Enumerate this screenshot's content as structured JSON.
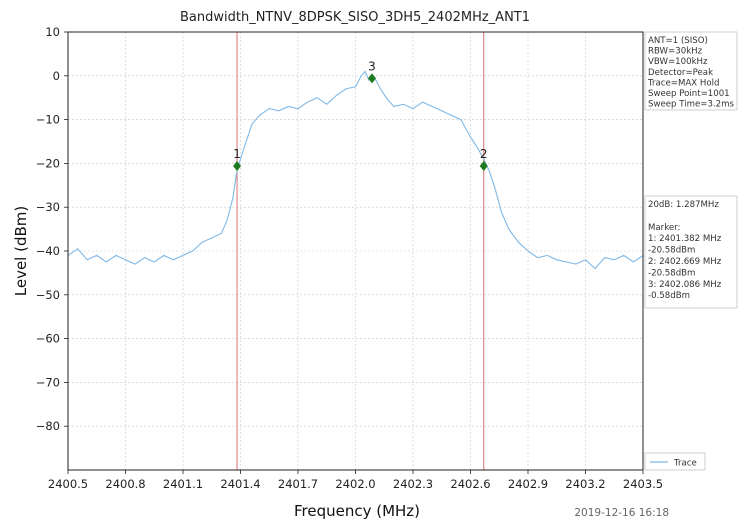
{
  "chart_data": {
    "type": "line",
    "title": "Bandwidth_NTNV_8DPSK_SISO_3DH5_2402MHz_ANT1",
    "xlabel": "Frequency (MHz)",
    "ylabel": "Level (dBm)",
    "xlim": [
      2400.5,
      2403.5
    ],
    "ylim": [
      -90,
      10
    ],
    "x_ticks": [
      2400.5,
      2400.8,
      2401.1,
      2401.4,
      2401.7,
      2402.0,
      2402.3,
      2402.6,
      2402.9,
      2403.2,
      2403.5
    ],
    "x_tick_labels": [
      "2400.5",
      "2400.8",
      "2401.1",
      "2401.4",
      "2401.7",
      "2402.0",
      "2402.3",
      "2402.6",
      "2402.9",
      "2403.2",
      "2403.5"
    ],
    "y_ticks": [
      10,
      0,
      -10,
      -20,
      -30,
      -40,
      -50,
      -60,
      -70,
      -80
    ],
    "y_tick_labels": [
      "10",
      "0",
      "−10",
      "−20",
      "−30",
      "−40",
      "−50",
      "−60",
      "−70",
      "−80"
    ],
    "grid": true,
    "legend_position": "bottom-right",
    "series": [
      {
        "name": "Trace",
        "color": "#7fb8e6",
        "x": [
          2400.5,
          2400.55,
          2400.6,
          2400.65,
          2400.7,
          2400.75,
          2400.8,
          2400.85,
          2400.9,
          2400.95,
          2401.0,
          2401.05,
          2401.1,
          2401.15,
          2401.2,
          2401.25,
          2401.3,
          2401.33,
          2401.36,
          2401.38,
          2401.4,
          2401.43,
          2401.46,
          2401.5,
          2401.55,
          2401.6,
          2401.65,
          2401.7,
          2401.75,
          2401.8,
          2401.85,
          2401.9,
          2401.95,
          2402.0,
          2402.03,
          2402.05,
          2402.07,
          2402.1,
          2402.13,
          2402.16,
          2402.2,
          2402.25,
          2402.3,
          2402.35,
          2402.4,
          2402.45,
          2402.5,
          2402.55,
          2402.6,
          2402.63,
          2402.67,
          2402.7,
          2402.73,
          2402.76,
          2402.8,
          2402.85,
          2402.9,
          2402.95,
          2403.0,
          2403.05,
          2403.1,
          2403.15,
          2403.2,
          2403.25,
          2403.3,
          2403.35,
          2403.4,
          2403.45,
          2403.5
        ],
        "y": [
          -41,
          -39.5,
          -42,
          -41,
          -42.5,
          -41,
          -42,
          -43,
          -41.5,
          -42.5,
          -41,
          -42,
          -41,
          -40,
          -38,
          -37,
          -36,
          -33,
          -28,
          -22,
          -19,
          -15,
          -11,
          -9,
          -7.5,
          -8,
          -7,
          -7.5,
          -6,
          -5,
          -6.5,
          -4.5,
          -3,
          -2.5,
          0,
          1,
          -1,
          -0.5,
          -3,
          -5,
          -7,
          -6.5,
          -7.5,
          -6,
          -7,
          -8,
          -9,
          -10,
          -14,
          -16,
          -19,
          -22,
          -26,
          -31,
          -35,
          -38,
          -40,
          -41.5,
          -41,
          -42,
          -42.5,
          -43,
          -42,
          -44,
          -41.5,
          -42,
          -41,
          -42.5,
          -41
        ]
      }
    ],
    "markers": [
      {
        "label": "1",
        "x": 2401.382,
        "y": -20.58
      },
      {
        "label": "2",
        "x": 2402.669,
        "y": -20.58
      },
      {
        "label": "3",
        "x": 2402.086,
        "y": -0.58
      }
    ],
    "marker_lines_x": [
      2401.382,
      2402.669
    ],
    "info_panel": [
      "ANT=1 (SISO)",
      "RBW=30kHz",
      "VBW=100kHz",
      "Detector=Peak",
      "Trace=MAX Hold",
      "Sweep Point=1001",
      "Sweep Time=3.2ms"
    ],
    "result_panel": [
      "20dB: 1.287MHz",
      "",
      "Marker:",
      "1: 2401.382 MHz",
      "   -20.58dBm",
      "2: 2402.669 MHz",
      "   -20.58dBm",
      "3: 2402.086 MHz",
      "   -0.58dBm"
    ],
    "timestamp": "2019-12-16 16:18"
  },
  "colors": {
    "trace": "#7fb8e6",
    "marker_line": "#e07070",
    "marker_point": "#1e7a1e",
    "grid": "#c8c8c8"
  }
}
